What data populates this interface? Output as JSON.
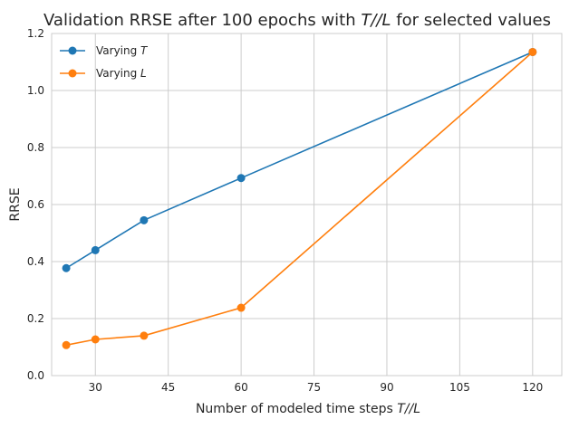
{
  "chart_data": {
    "type": "line",
    "title": {
      "prefix": "Validation RRSE after 100 epochs with ",
      "math": "T//L",
      "suffix": " for selected values"
    },
    "xlabel": {
      "prefix": "Number of modeled time steps ",
      "math": "T//L"
    },
    "ylabel": "RRSE",
    "xlim": [
      21,
      126
    ],
    "ylim": [
      0,
      1.2
    ],
    "xticks": [
      30,
      45,
      60,
      75,
      90,
      105,
      120
    ],
    "yticks": [
      0.0,
      0.2,
      0.4,
      0.6,
      0.8,
      1.0,
      1.2
    ],
    "grid": true,
    "legend_position": "top-left",
    "series": [
      {
        "name_prefix": "Varying ",
        "name_math": "T",
        "color": "#1f77b4",
        "x": [
          24,
          30,
          40,
          60,
          120
        ],
        "y": [
          0.377,
          0.44,
          0.545,
          0.693,
          1.135
        ]
      },
      {
        "name_prefix": "Varying ",
        "name_math": "L",
        "color": "#ff7f0e",
        "x": [
          24,
          30,
          40,
          60,
          120
        ],
        "y": [
          0.107,
          0.127,
          0.14,
          0.238,
          1.135
        ]
      }
    ]
  }
}
